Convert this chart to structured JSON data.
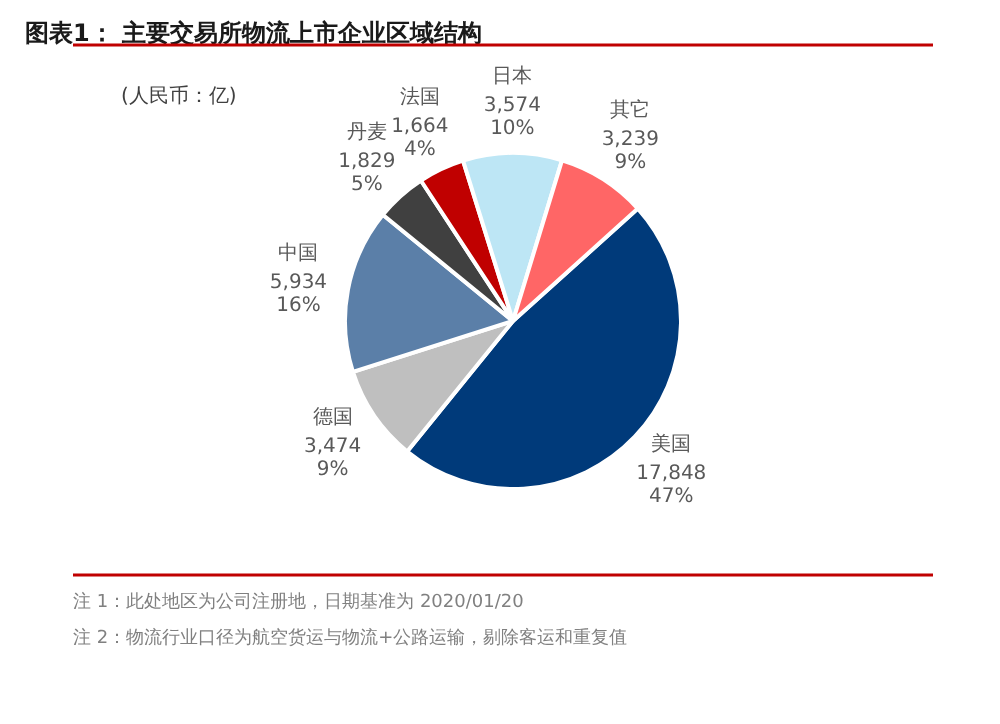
{
  "chart_data": {
    "type": "pie",
    "title": "图表1：  主要交易所物流上市企业区域结构",
    "categories": [
      "美国",
      "德国",
      "中国",
      "丹麦",
      "法国",
      "日本",
      "其它"
    ],
    "values": [
      17848,
      3474,
      5934,
      1829,
      1664,
      3574,
      3239
    ],
    "colors": [
      "#003a7a",
      "#bfbfbf",
      "#5b7fa8",
      "#404040",
      "#c00000",
      "#bde6f5",
      "#ff6666"
    ],
    "value_labels": [
      "17,848\n47%",
      "3,474\n9%",
      "5,934\n16%",
      "1,829\n5%",
      "1,664\n4%",
      "3,574\n10%",
      "3,239\n9%"
    ],
    "annotations": [
      "(人民币：亿)",
      "注 1：此处地区为公司注册地，日期基准为 2020/01/20",
      "注 2：物流行业口径为航空货运与物流+公路运输，剔除客运和重复值"
    ]
  }
}
